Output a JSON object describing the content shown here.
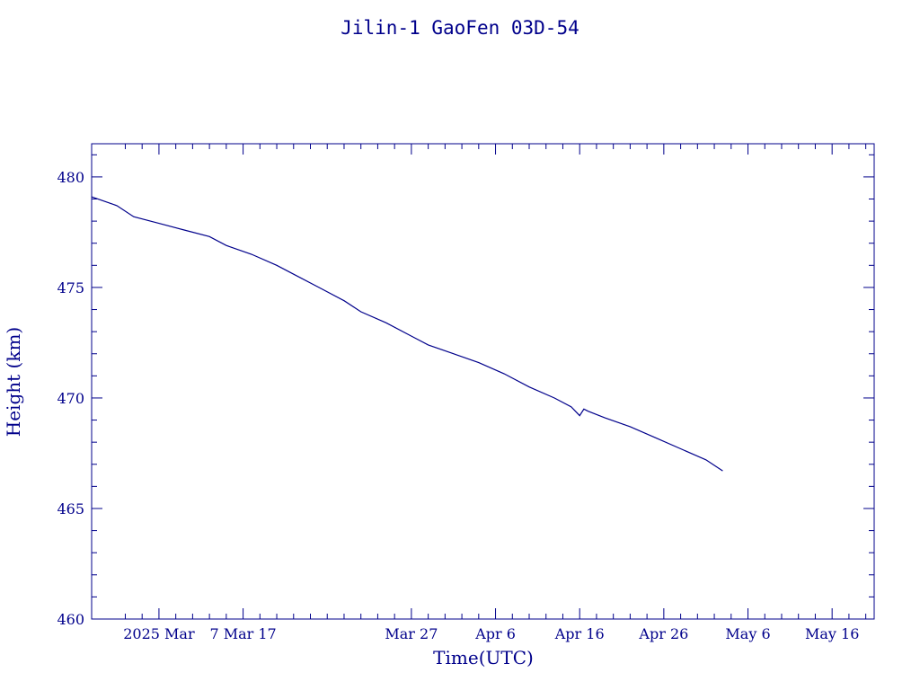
{
  "chart_data": {
    "type": "line",
    "title": "Jilin-1 GaoFen 03D-54",
    "xlabel": "Time(UTC)",
    "ylabel": "Height (km)",
    "xlim": [
      "2025-02-17",
      "2025-05-21"
    ],
    "ylim": [
      460,
      481.5
    ],
    "grid": false,
    "x_tick_labels": [
      {
        "date": "2025-02-25",
        "label": "2025 Mar"
      },
      {
        "date": "2025-03-07",
        "label": "7 Mar 17"
      },
      {
        "date": "2025-03-27",
        "label": "Mar 27"
      },
      {
        "date": "2025-04-06",
        "label": "Apr  6"
      },
      {
        "date": "2025-04-16",
        "label": "Apr 16"
      },
      {
        "date": "2025-04-26",
        "label": "Apr 26"
      },
      {
        "date": "2025-05-06",
        "label": "May  6"
      },
      {
        "date": "2025-05-16",
        "label": "May 16"
      }
    ],
    "y_ticks": [
      460,
      465,
      470,
      475,
      480
    ],
    "y_tick_labels": [
      "460",
      "465",
      "470",
      "475",
      "480"
    ],
    "series": [
      {
        "x": [
          "2025-02-17",
          "2025-02-20",
          "2025-02-22",
          "2025-02-25",
          "2025-02-28",
          "2025-03-03",
          "2025-03-05",
          "2025-03-08",
          "2025-03-11",
          "2025-03-13",
          "2025-03-16",
          "2025-03-19",
          "2025-03-21",
          "2025-03-24",
          "2025-03-27",
          "2025-03-29",
          "2025-04-01",
          "2025-04-04",
          "2025-04-07",
          "2025-04-10",
          "2025-04-13",
          "2025-04-15",
          "2025-04-16",
          "2025-04-16T12:00",
          "2025-04-17",
          "2025-04-19",
          "2025-04-22",
          "2025-04-25",
          "2025-04-28",
          "2025-05-01",
          "2025-05-03"
        ],
        "values": [
          479.1,
          478.7,
          478.2,
          477.9,
          477.6,
          477.3,
          476.9,
          476.5,
          476.0,
          475.6,
          475.0,
          474.4,
          473.9,
          473.4,
          472.8,
          472.4,
          472.0,
          471.6,
          471.1,
          470.5,
          470.0,
          469.6,
          469.2,
          469.5,
          469.4,
          469.1,
          468.7,
          468.2,
          467.7,
          467.2,
          466.7
        ]
      }
    ]
  }
}
